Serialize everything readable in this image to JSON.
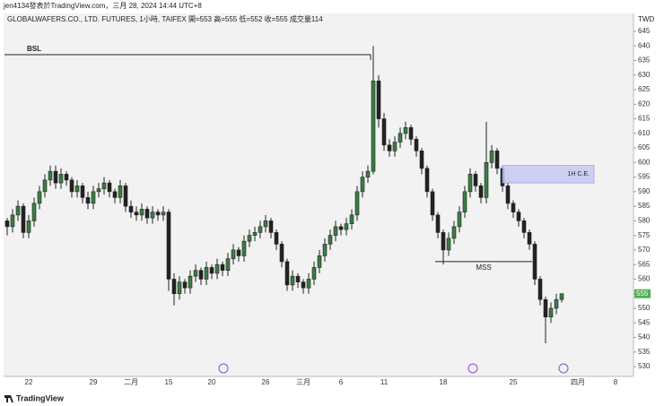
{
  "chart_data": {
    "type": "candlestick",
    "title": "jen4134發表於TradingView.com，三月 28, 2024 14:44 UTC+8",
    "subtitle": "GLOBALWAFERS.CO., LTD. FUTURES, 1小時, TAIFEX  開=553  高=555  低=552  收=555  成交量114",
    "currency": "TWD",
    "brand": "TradingView",
    "up_color": "#3a7d44",
    "down_color": "#222222",
    "ylim": [
      527,
      648
    ],
    "yticks": [
      530,
      535,
      540,
      545,
      550,
      555,
      560,
      565,
      570,
      575,
      580,
      585,
      590,
      595,
      600,
      605,
      610,
      615,
      620,
      625,
      630,
      635,
      640,
      645
    ],
    "last_price": 555,
    "last_price_color": "#4caf50",
    "categories": [
      null,
      null,
      null,
      null,
      "22",
      null,
      null,
      null,
      null,
      null,
      null,
      null,
      null,
      null,
      null,
      null,
      "29",
      null,
      null,
      null,
      null,
      null,
      null,
      "二月",
      null,
      null,
      null,
      null,
      null,
      null,
      "15",
      null,
      null,
      null,
      null,
      null,
      null,
      null,
      "20",
      null,
      null,
      null,
      null,
      null,
      null,
      null,
      null,
      null,
      "26",
      null,
      null,
      null,
      null,
      null,
      null,
      "三月",
      null,
      null,
      null,
      null,
      null,
      null,
      "6",
      null,
      null,
      null,
      null,
      null,
      null,
      null,
      "11",
      null,
      null,
      null,
      null,
      null,
      null,
      null,
      null,
      null,
      null,
      "18",
      null,
      null,
      null,
      null,
      null,
      null,
      null,
      null,
      null,
      null,
      null,
      null,
      "25",
      null,
      null,
      null,
      null,
      null,
      null,
      null,
      null,
      null,
      null,
      null,
      "四月",
      null,
      null,
      null,
      null,
      null,
      null,
      "8",
      null,
      null,
      null
    ],
    "ohlc": [
      [
        580,
        581,
        575,
        578
      ],
      [
        578,
        584,
        576,
        582
      ],
      [
        582,
        587,
        580,
        585
      ],
      [
        585,
        586,
        574,
        576
      ],
      [
        576,
        582,
        574,
        580
      ],
      [
        580,
        588,
        578,
        586
      ],
      [
        586,
        592,
        584,
        590
      ],
      [
        590,
        596,
        588,
        594
      ],
      [
        594,
        599,
        592,
        597
      ],
      [
        597,
        599,
        591,
        593
      ],
      [
        593,
        598,
        591,
        596
      ],
      [
        596,
        597,
        592,
        594
      ],
      [
        594,
        595,
        588,
        590
      ],
      [
        590,
        594,
        588,
        592
      ],
      [
        592,
        593,
        586,
        588
      ],
      [
        588,
        590,
        584,
        586
      ],
      [
        586,
        592,
        584,
        590
      ],
      [
        590,
        593,
        588,
        591
      ],
      [
        591,
        595,
        589,
        593
      ],
      [
        593,
        594,
        588,
        590
      ],
      [
        590,
        591,
        586,
        588
      ],
      [
        588,
        594,
        586,
        592
      ],
      [
        592,
        593,
        583,
        585
      ],
      [
        585,
        587,
        581,
        583
      ],
      [
        583,
        585,
        580,
        582
      ],
      [
        582,
        586,
        580,
        584
      ],
      [
        584,
        585,
        579,
        581
      ],
      [
        581,
        585,
        579,
        583
      ],
      [
        583,
        584,
        580,
        582
      ],
      [
        582,
        585,
        580,
        583
      ],
      [
        583,
        584,
        556,
        560
      ],
      [
        560,
        562,
        551,
        555
      ],
      [
        555,
        561,
        553,
        559
      ],
      [
        559,
        560,
        555,
        557
      ],
      [
        557,
        563,
        555,
        561
      ],
      [
        561,
        565,
        559,
        563
      ],
      [
        563,
        564,
        558,
        560
      ],
      [
        560,
        566,
        558,
        564
      ],
      [
        564,
        565,
        560,
        562
      ],
      [
        562,
        567,
        560,
        565
      ],
      [
        565,
        566,
        561,
        563
      ],
      [
        563,
        569,
        561,
        567
      ],
      [
        567,
        572,
        565,
        570
      ],
      [
        570,
        571,
        566,
        568
      ],
      [
        568,
        575,
        566,
        573
      ],
      [
        573,
        577,
        571,
        575
      ],
      [
        575,
        578,
        573,
        576
      ],
      [
        576,
        580,
        574,
        578
      ],
      [
        578,
        582,
        576,
        580
      ],
      [
        580,
        581,
        574,
        576
      ],
      [
        576,
        577,
        570,
        572
      ],
      [
        572,
        573,
        564,
        566
      ],
      [
        566,
        567,
        556,
        558
      ],
      [
        558,
        563,
        556,
        561
      ],
      [
        561,
        562,
        557,
        559
      ],
      [
        559,
        560,
        555,
        557
      ],
      [
        557,
        562,
        555,
        560
      ],
      [
        560,
        566,
        558,
        564
      ],
      [
        564,
        570,
        562,
        568
      ],
      [
        568,
        574,
        566,
        572
      ],
      [
        572,
        577,
        570,
        575
      ],
      [
        575,
        580,
        573,
        578
      ],
      [
        578,
        579,
        575,
        577
      ],
      [
        577,
        581,
        575,
        579
      ],
      [
        579,
        584,
        577,
        582
      ],
      [
        582,
        592,
        580,
        590
      ],
      [
        590,
        597,
        588,
        595
      ],
      [
        595,
        599,
        593,
        597
      ],
      [
        597,
        640,
        596,
        628
      ],
      [
        628,
        630,
        612,
        615
      ],
      [
        615,
        617,
        604,
        606
      ],
      [
        606,
        608,
        602,
        604
      ],
      [
        604,
        609,
        602,
        607
      ],
      [
        607,
        612,
        605,
        610
      ],
      [
        610,
        614,
        608,
        612
      ],
      [
        612,
        613,
        606,
        608
      ],
      [
        608,
        609,
        602,
        604
      ],
      [
        604,
        605,
        596,
        598
      ],
      [
        598,
        599,
        588,
        590
      ],
      [
        590,
        591,
        580,
        582
      ],
      [
        582,
        583,
        574,
        576
      ],
      [
        576,
        577,
        565,
        570
      ],
      [
        570,
        576,
        568,
        574
      ],
      [
        574,
        580,
        572,
        578
      ],
      [
        578,
        585,
        576,
        583
      ],
      [
        583,
        592,
        581,
        590
      ],
      [
        590,
        598,
        588,
        596
      ],
      [
        596,
        597,
        590,
        592
      ],
      [
        592,
        593,
        586,
        588
      ],
      [
        588,
        614,
        586,
        600
      ],
      [
        600,
        606,
        598,
        604
      ],
      [
        604,
        605,
        596,
        598
      ],
      [
        598,
        599,
        590,
        592
      ],
      [
        592,
        593,
        584,
        586
      ],
      [
        586,
        587,
        581,
        583
      ],
      [
        583,
        584,
        578,
        580
      ],
      [
        580,
        581,
        574,
        576
      ],
      [
        576,
        577,
        570,
        572
      ],
      [
        572,
        573,
        558,
        560
      ],
      [
        560,
        561,
        551,
        553
      ],
      [
        553,
        554,
        538,
        547
      ],
      [
        547,
        552,
        545,
        550
      ],
      [
        550,
        555,
        548,
        553
      ],
      [
        553,
        555,
        552,
        555
      ],
      null,
      null,
      null,
      null,
      null,
      null,
      null,
      null,
      null,
      null,
      null,
      null,
      null
    ],
    "annotations": [
      {
        "label": "BSL",
        "price": 637,
        "from": 0,
        "to": 67
      },
      {
        "label": "MSS",
        "price": 566,
        "from": 80,
        "to": 97
      },
      {
        "label": "1H C.E.",
        "low": 593,
        "high": 599,
        "from": 92,
        "to": 109,
        "color": "#c5c8f2"
      }
    ]
  }
}
